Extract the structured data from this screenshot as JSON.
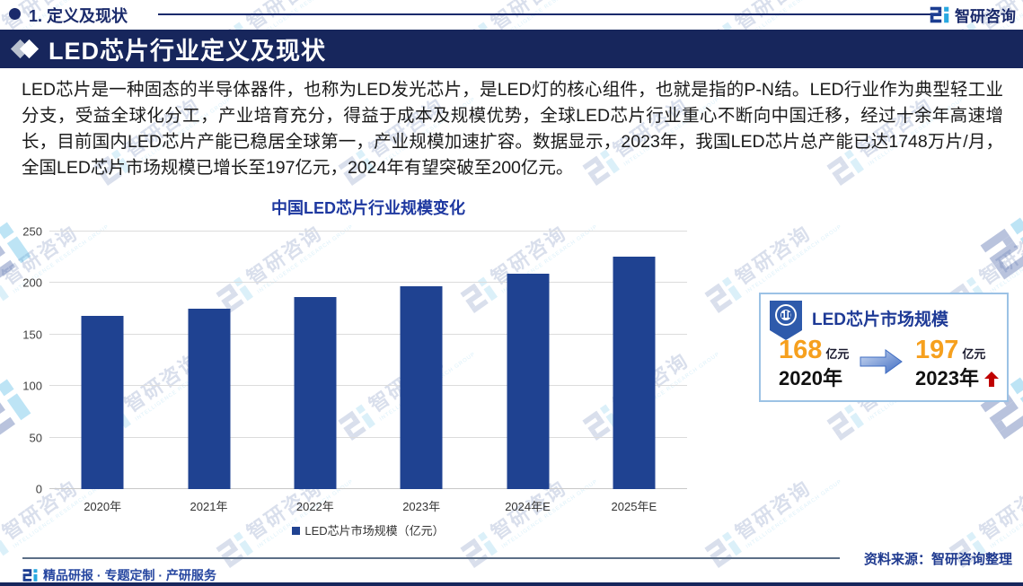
{
  "header": {
    "section": "1. 定义及现状",
    "brand": "智研咨询"
  },
  "banner": {
    "title": "LED芯片行业定义及现状"
  },
  "intro": "LED芯片是一种固态的半导体器件，也称为LED发光芯片，是LED灯的核心组件，也就是指的P-N结。LED行业作为典型轻工业分支，受益全球化分工，产业培育充分，得益于成本及规模优势，全球LED芯片行业重心不断向中国迁移，经过十余年高速增长，目前国内LED芯片产能已稳居全球第一，产业规模加速扩容。数据显示，2023年，我国LED芯片总产能已达1748万片/月，全国LED芯片市场规模已增长至197亿元，2024年有望突破至200亿元。",
  "chart_data": {
    "type": "bar",
    "title": "中国LED芯片行业规模变化",
    "categories": [
      "2020年",
      "2021年",
      "2022年",
      "2023年",
      "2024年E",
      "2025年E"
    ],
    "values": [
      168,
      175,
      186,
      197,
      209,
      226
    ],
    "legend": "LED芯片市场规模（亿元）",
    "xlabel": "",
    "ylabel": "",
    "ylim": [
      0,
      250
    ],
    "yticks": [
      0,
      50,
      100,
      150,
      200,
      250
    ],
    "grid": true,
    "legend_position": "bottom",
    "bar_color": "#1F4291"
  },
  "infobox": {
    "title": "LED芯片市场规模",
    "from": {
      "value": "168",
      "unit": "亿元",
      "year": "2020年"
    },
    "to": {
      "value": "197",
      "unit": "亿元",
      "year": "2023年"
    },
    "trend": "up"
  },
  "footer": {
    "services": "精品研报 · 专题定制 · 产研服务",
    "source": "资料来源：智研咨询整理"
  },
  "watermark": {
    "text": "智研咨询",
    "subtext": "INTELLIGENCE RESEARCH GROUP"
  },
  "colors": {
    "banner_navy": "#17265c",
    "bar_blue": "#1F4291",
    "title_blue": "#1e38a0",
    "number_orange": "#F6A01E",
    "trend_red": "#C00000",
    "brand_cyan": "#29a8e0",
    "brand_navy": "#1b3d91"
  }
}
